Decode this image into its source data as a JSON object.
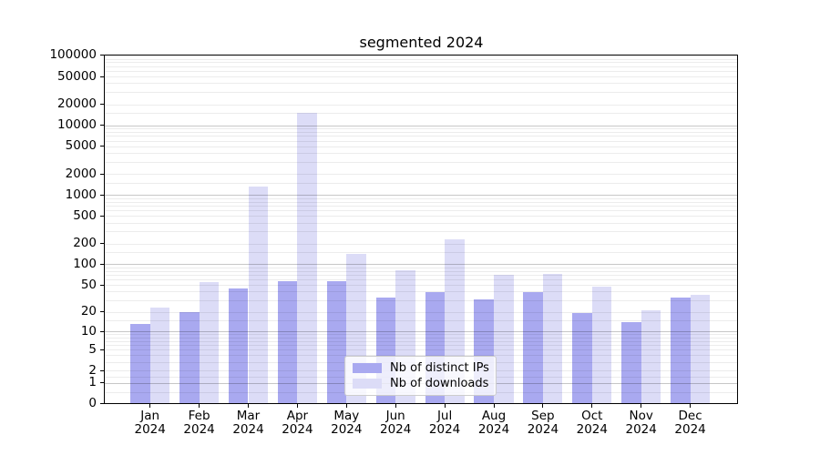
{
  "chart_data": {
    "type": "bar",
    "title": "segmented 2024",
    "categories": [
      "Jan",
      "Feb",
      "Mar",
      "Apr",
      "May",
      "Jun",
      "Jul",
      "Aug",
      "Sep",
      "Oct",
      "Nov",
      "Dec"
    ],
    "year_label": "2024",
    "series": [
      {
        "name": "Nb of distinct IPs",
        "color": "#a9a9f0",
        "values": [
          13,
          20,
          44,
          57,
          56,
          33,
          39,
          31,
          39,
          19,
          14,
          33
        ]
      },
      {
        "name": "Nb of downloads",
        "color": "#dcdcf7",
        "values": [
          23,
          55,
          1300,
          15000,
          140,
          81,
          230,
          70,
          72,
          47,
          21,
          36
        ]
      }
    ],
    "y_ticks": [
      0,
      1,
      2,
      5,
      10,
      20,
      50,
      100,
      200,
      500,
      1000,
      2000,
      5000,
      10000,
      20000,
      50000,
      100000
    ],
    "y_scale": "log10(1+v)",
    "ylim": [
      0,
      100000
    ],
    "grid": "on",
    "legend_position": "lower center",
    "colors": {
      "axis": "#000000",
      "grid_major": "rgba(0,0,0,0.22)",
      "grid_minor": "rgba(0,0,0,0.075)"
    }
  }
}
